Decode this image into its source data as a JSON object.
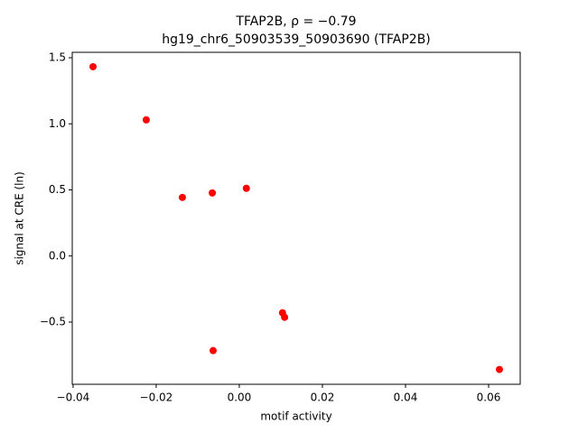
{
  "chart_data": {
    "type": "scatter",
    "title": "TFAP2B, ρ = −0.79",
    "subtitle": "hg19_chr6_50903539_50903690 (TFAP2B)",
    "x_label": "motif activity",
    "y_label": "signal at CRE (ln)",
    "color": "#ff0000",
    "x": [
      -0.0352,
      -0.0224,
      -0.0137,
      -0.0065,
      0.0017,
      0.0104,
      0.0109,
      -0.0063,
      0.0626
    ],
    "values": [
      1.432,
      1.03,
      0.443,
      0.477,
      0.512,
      -0.43,
      -0.464,
      -0.716,
      -0.859
    ],
    "xlim": [
      -0.0402,
      0.0676
    ],
    "ylim": [
      -0.971,
      1.541
    ],
    "xticks": [
      {
        "value": -0.04,
        "label": "−0.04"
      },
      {
        "value": -0.02,
        "label": "−0.02"
      },
      {
        "value": 0,
        "label": "0.00"
      },
      0.02,
      0.04,
      0.06
    ],
    "yticks": [
      {
        "value": -0.5,
        "label": "−0.5"
      },
      {
        "value": 0,
        "label": "0.0"
      },
      0.5,
      {
        "value": 1,
        "label": "1.0"
      },
      1.5
    ],
    "grid": false
  }
}
